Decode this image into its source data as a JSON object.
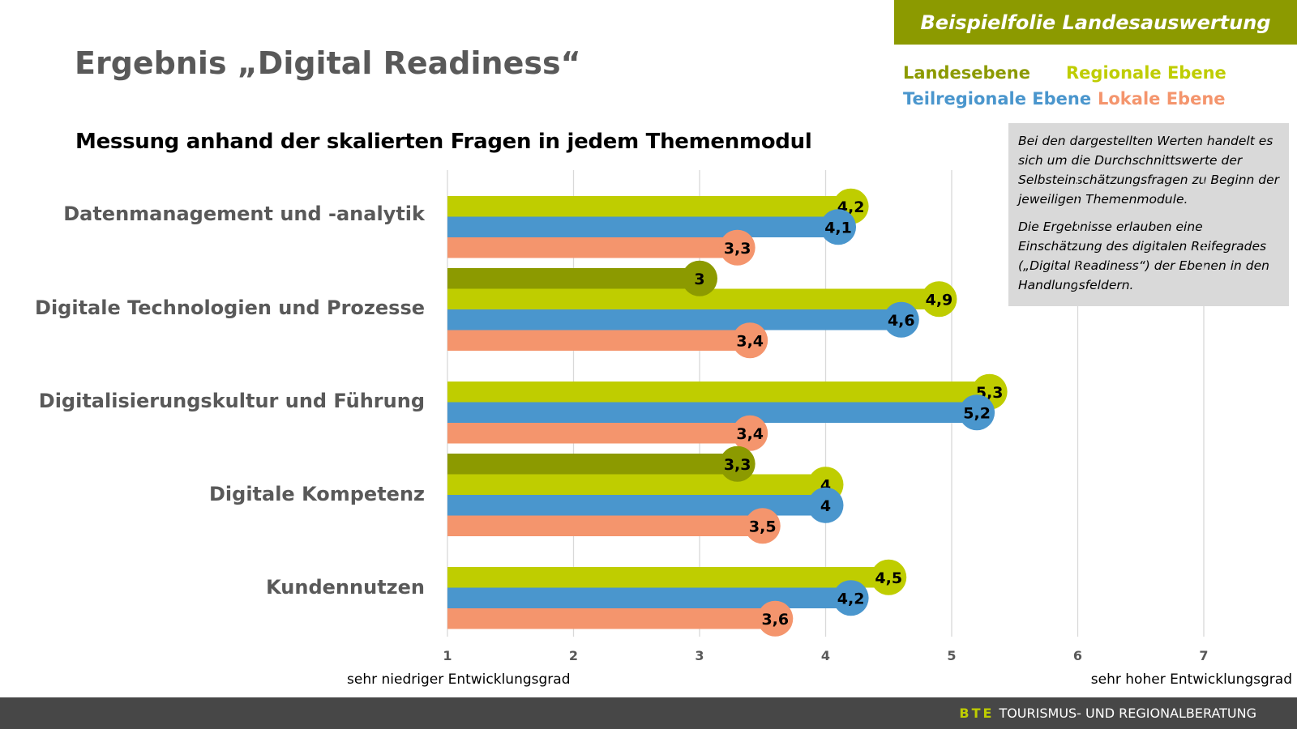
{
  "header": {
    "title": "Ergebnis „Digital Readiness“",
    "subtitle": "Messung anhand der skalierten Fragen in jedem Themenmodul",
    "banner": "Beispielfolie Landesauswertung"
  },
  "legend": [
    {
      "label": "Landesebene",
      "color": "#8c9a00"
    },
    {
      "label": "Regionale Ebene",
      "color": "#bfcd00"
    },
    {
      "label": "Teilregionale Ebene",
      "color": "#4a96cd"
    },
    {
      "label": "Lokale Ebene",
      "color": "#f4956d"
    }
  ],
  "note": {
    "p1": "Bei den dargestellten Werten handelt es sich um die Durchschnittswerte der Selbsteinschätzungsfragen zu Beginn der jeweiligen Themenmodule.",
    "p2": "Die Ergebnisse erlauben eine Einschätzung des digitalen Reifegrades („Digital Readiness“) der Ebenen in den  Handlungsfeldern."
  },
  "axis_captions": {
    "low": "sehr niedriger Entwicklungsgrad",
    "high": "sehr hoher Entwicklungsgrad"
  },
  "footer": {
    "bte": "BTE",
    "text": "TOURISMUS- UND REGIONALBERATUNG"
  },
  "chart_data": {
    "type": "bar",
    "orientation": "horizontal",
    "categories": [
      "Datenmanagement und -analytik",
      "Digitale Technologien und Prozesse",
      "Digitalisierungskultur und Führung",
      "Digitale Kompetenz",
      "Kundennutzen"
    ],
    "series": [
      {
        "name": "Landesebene",
        "color": "#8c9a00",
        "values": [
          null,
          3,
          null,
          3.3,
          null
        ],
        "labels": [
          null,
          "3",
          null,
          "3,3",
          null
        ]
      },
      {
        "name": "Regionale Ebene",
        "color": "#bfcd00",
        "values": [
          4.2,
          4.9,
          5.3,
          4,
          4.5
        ],
        "labels": [
          "4,2",
          "4,9",
          "5,3",
          "4",
          "4,5"
        ]
      },
      {
        "name": "Teilregionale Ebene",
        "color": "#4a96cd",
        "values": [
          4.1,
          4.6,
          5.2,
          4,
          4.2
        ],
        "labels": [
          "4,1",
          "4,6",
          "5,2",
          "4",
          "4,2"
        ]
      },
      {
        "name": "Lokale Ebene",
        "color": "#f4956d",
        "values": [
          3.3,
          3.4,
          3.4,
          3.5,
          3.6
        ],
        "labels": [
          "3,3",
          "3,4",
          "3,4",
          "3,5",
          "3,6"
        ]
      }
    ],
    "xlim": [
      1,
      7
    ],
    "xticks": [
      "1",
      "2",
      "3",
      "4",
      "5",
      "6",
      "7"
    ],
    "grid": true,
    "legend_position": "top-right"
  }
}
